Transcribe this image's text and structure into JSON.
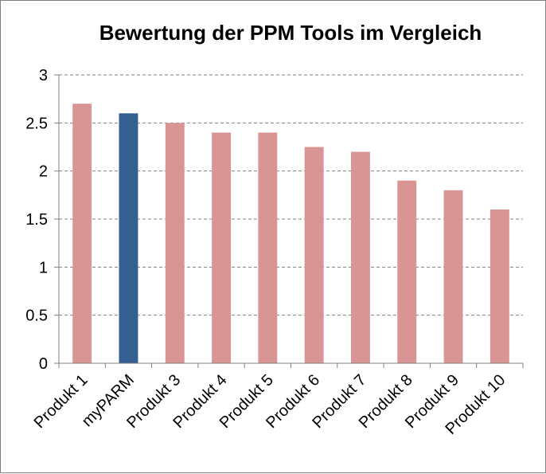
{
  "chart_data": {
    "type": "bar",
    "title": "Bewertung der PPM Tools im Vergleich",
    "xlabel": "",
    "ylabel": "",
    "categories": [
      "Produkt 1",
      "myPARM",
      "Produkt 3",
      "Produkt 4",
      "Produkt 5",
      "Produkt 6",
      "Produkt 7",
      "Produkt 8",
      "Produkt 9",
      "Produkt 10"
    ],
    "values": [
      2.7,
      2.6,
      2.5,
      2.4,
      2.4,
      2.25,
      2.2,
      1.9,
      1.8,
      1.6
    ],
    "highlight_index": 1,
    "ylim": [
      0,
      3
    ],
    "yticks": [
      "0",
      "0.5",
      "1",
      "1.5",
      "2",
      "2.5",
      "3"
    ],
    "grid": true,
    "colors": {
      "bar": "#d99594",
      "highlight": "#365f91",
      "grid": "#808080",
      "axis": "#808080"
    }
  }
}
